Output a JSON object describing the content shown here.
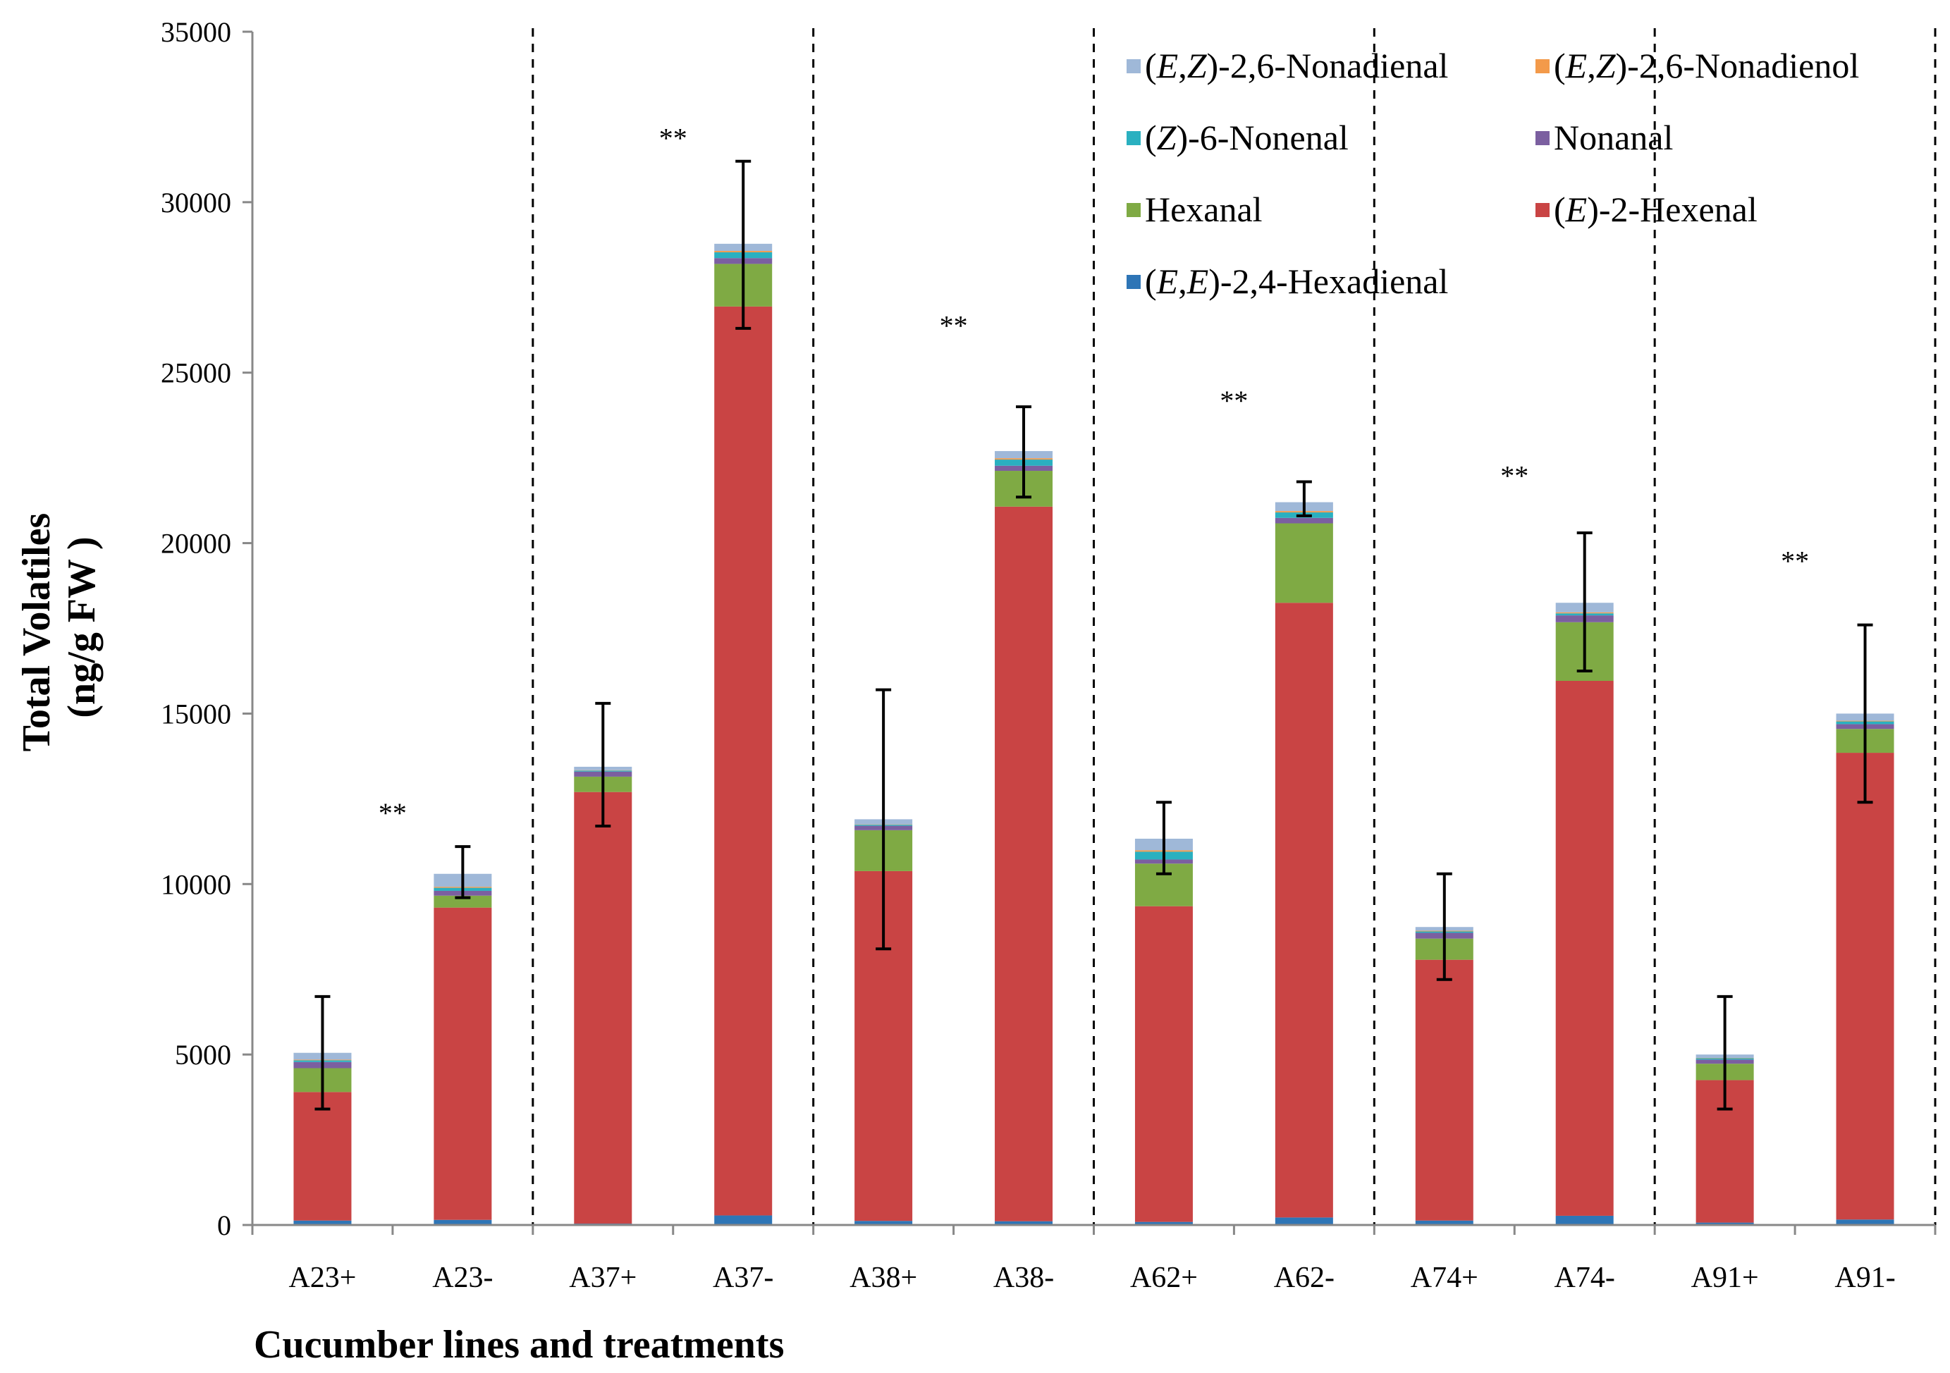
{
  "chart_data": {
    "type": "bar",
    "stacked": true,
    "title": "",
    "xlabel": "Cucumber lines and treatments",
    "ylabel_line1": "Total Volatiles",
    "ylabel_line2": "(ng/g FW )",
    "ylim": [
      0,
      35000
    ],
    "yticks": [
      0,
      5000,
      10000,
      15000,
      20000,
      25000,
      30000,
      35000
    ],
    "grid": false,
    "legend_position": "top-right",
    "categories": [
      "A23+",
      "A23-",
      "A37+",
      "A37-",
      "A38+",
      "A38-",
      "A62+",
      "A62-",
      "A74+",
      "A74-",
      "A91+",
      "A91-"
    ],
    "group_separators_after_index": [
      1,
      3,
      5,
      7,
      9,
      11
    ],
    "significance": [
      {
        "between": [
          0,
          1
        ],
        "label": "**",
        "y": 11800
      },
      {
        "between": [
          2,
          3
        ],
        "label": "**",
        "y": 31600
      },
      {
        "between": [
          4,
          5
        ],
        "label": "**",
        "y": 26100
      },
      {
        "between": [
          6,
          7
        ],
        "label": "**",
        "y": 23900
      },
      {
        "between": [
          8,
          9
        ],
        "label": "**",
        "y": 21700
      },
      {
        "between": [
          10,
          11
        ],
        "label": "**",
        "y": 19200
      }
    ],
    "series": [
      {
        "name_parts": [
          [
            "(",
            ""
          ],
          [
            "E",
            "i"
          ],
          [
            ",",
            ""
          ],
          [
            "E",
            "i"
          ],
          [
            ")-2,4-Hexadienal",
            ""
          ]
        ],
        "color": "#2e75b6",
        "values": [
          130,
          150,
          40,
          280,
          120,
          110,
          90,
          220,
          130,
          270,
          70,
          160
        ]
      },
      {
        "name_parts": [
          [
            "(",
            ""
          ],
          [
            "E",
            "i"
          ],
          [
            ")-2-Hexenal",
            ""
          ]
        ],
        "color": "#c94444",
        "values": [
          3770,
          9160,
          12660,
          26660,
          10260,
          20960,
          9260,
          18030,
          7650,
          15690,
          4180,
          13690
        ]
      },
      {
        "name_parts": [
          [
            "Hexanal",
            ""
          ]
        ],
        "color": "#7faa44",
        "values": [
          700,
          350,
          450,
          1250,
          1200,
          1050,
          1250,
          2330,
          620,
          1720,
          480,
          700
        ]
      },
      {
        "name_parts": [
          [
            "Nonanal",
            ""
          ]
        ],
        "color": "#7b5fa0",
        "values": [
          180,
          140,
          150,
          170,
          130,
          150,
          120,
          160,
          170,
          200,
          120,
          140
        ]
      },
      {
        "name_parts": [
          [
            "(",
            ""
          ],
          [
            "Z",
            "i"
          ],
          [
            ")-6-Nonenal",
            ""
          ]
        ],
        "color": "#2ab0c0",
        "values": [
          50,
          90,
          30,
          170,
          30,
          180,
          230,
          160,
          40,
          60,
          40,
          80
        ]
      },
      {
        "name_parts": [
          [
            "(",
            ""
          ],
          [
            "E",
            "i"
          ],
          [
            ",",
            ""
          ],
          [
            "Z",
            "i"
          ],
          [
            ")-2,6-Nonadienol",
            ""
          ]
        ],
        "color": "#f39a4a",
        "values": [
          20,
          30,
          10,
          40,
          10,
          40,
          40,
          40,
          20,
          30,
          10,
          20
        ]
      },
      {
        "name_parts": [
          [
            "(",
            ""
          ],
          [
            "E",
            "i"
          ],
          [
            ",",
            ""
          ],
          [
            "Z",
            "i"
          ],
          [
            ")-2,6-Nonadienal",
            ""
          ]
        ],
        "color": "#9fb8d8",
        "values": [
          200,
          380,
          100,
          210,
          150,
          210,
          340,
          260,
          110,
          280,
          100,
          210
        ]
      }
    ],
    "totals": [
      5050,
      10300,
      13440,
      28780,
      11900,
      22700,
      11330,
      21200,
      8740,
      18250,
      5000,
      15000
    ],
    "error_bars": [
      {
        "low": 3400,
        "high": 6700
      },
      {
        "low": 9600,
        "high": 11100
      },
      {
        "low": 11700,
        "high": 15300
      },
      {
        "low": 26300,
        "high": 31200
      },
      {
        "low": 8100,
        "high": 15700
      },
      {
        "low": 21350,
        "high": 24000
      },
      {
        "low": 10300,
        "high": 12400
      },
      {
        "low": 20800,
        "high": 21800
      },
      {
        "low": 7200,
        "high": 10300
      },
      {
        "low": 16250,
        "high": 20300
      },
      {
        "low": 3400,
        "high": 6700
      },
      {
        "low": 12400,
        "high": 17600
      }
    ],
    "legend_layout": [
      {
        "series": 6,
        "col": 0,
        "row": 0
      },
      {
        "series": 5,
        "col": 1,
        "row": 0
      },
      {
        "series": 4,
        "col": 0,
        "row": 1
      },
      {
        "series": 3,
        "col": 1,
        "row": 1
      },
      {
        "series": 2,
        "col": 0,
        "row": 2
      },
      {
        "series": 1,
        "col": 1,
        "row": 2
      },
      {
        "series": 0,
        "col": 0,
        "row": 3
      }
    ]
  }
}
